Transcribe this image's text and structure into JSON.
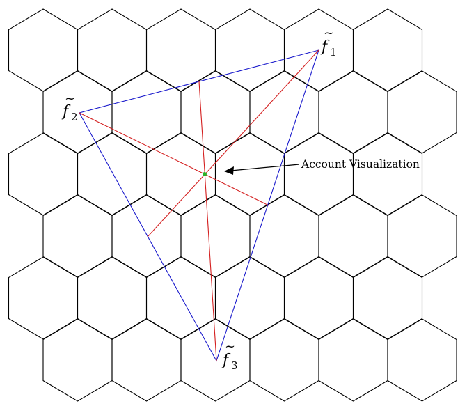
{
  "diagram": {
    "title": "",
    "vertices": [
      {
        "id": "f1",
        "letter": "f",
        "subscript": "1",
        "tilde": "~"
      },
      {
        "id": "f2",
        "letter": "f",
        "subscript": "2",
        "tilde": "~"
      },
      {
        "id": "f3",
        "letter": "f",
        "subscript": "3",
        "tilde": "~"
      }
    ],
    "annotation": {
      "text": "Account Visualization"
    },
    "grid": {
      "rows": 6,
      "hexes_per_row": 6
    },
    "colors": {
      "triangle": "#1a1acc",
      "medians": "#d41f1f",
      "centroid": "#2bb22b",
      "grid": "#000000"
    }
  }
}
